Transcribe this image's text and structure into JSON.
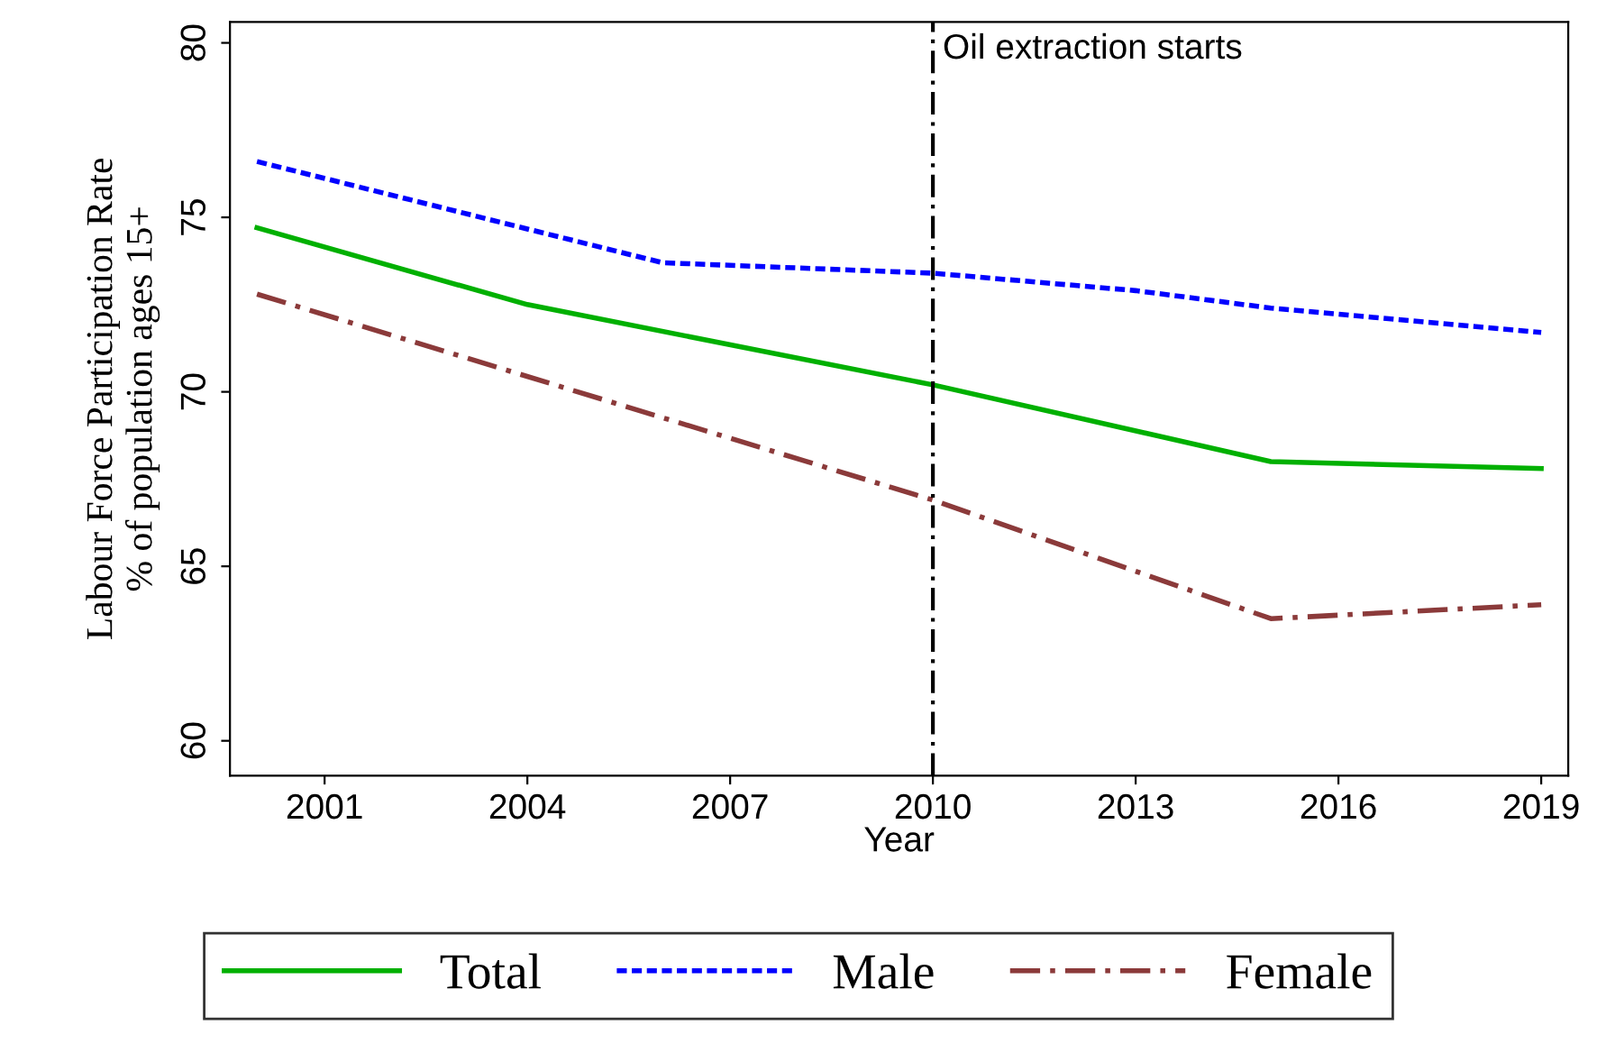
{
  "chart_data": {
    "type": "line",
    "xlabel": "Year",
    "ylabel": "Labour Force Participation Rate\n% of population ages 15+",
    "xlim": [
      1999.6,
      2019.4
    ],
    "xticks": [
      2001,
      2004,
      2007,
      2010,
      2013,
      2016,
      2019
    ],
    "ylim": [
      59,
      80.6
    ],
    "yticks": [
      60,
      65,
      70,
      75,
      80
    ],
    "grid": false,
    "legend": "bottom",
    "marker": "none",
    "series": [
      {
        "name": "Total",
        "color": "#00b000",
        "line_style": "solid",
        "x": [
          2000,
          2004,
          2010,
          2015,
          2019
        ],
        "values": [
          74.7,
          72.5,
          70.2,
          68.0,
          67.8
        ]
      },
      {
        "name": "Male",
        "color": "#0000ff",
        "line_style": "dotted",
        "x": [
          2000,
          2006,
          2010,
          2013,
          2015,
          2019
        ],
        "values": [
          76.6,
          73.7,
          73.4,
          72.9,
          72.4,
          71.7
        ]
      },
      {
        "name": "Female",
        "color": "#8b3a3a",
        "line_style": "dashdot",
        "x": [
          2000,
          2010,
          2015,
          2019
        ],
        "values": [
          72.8,
          66.9,
          63.5,
          63.9
        ]
      }
    ],
    "ref_lines": [
      {
        "axis": "x",
        "value": 2010,
        "label": "Oil extraction starts",
        "color": "#000000",
        "line_style": "dashdot"
      }
    ]
  }
}
